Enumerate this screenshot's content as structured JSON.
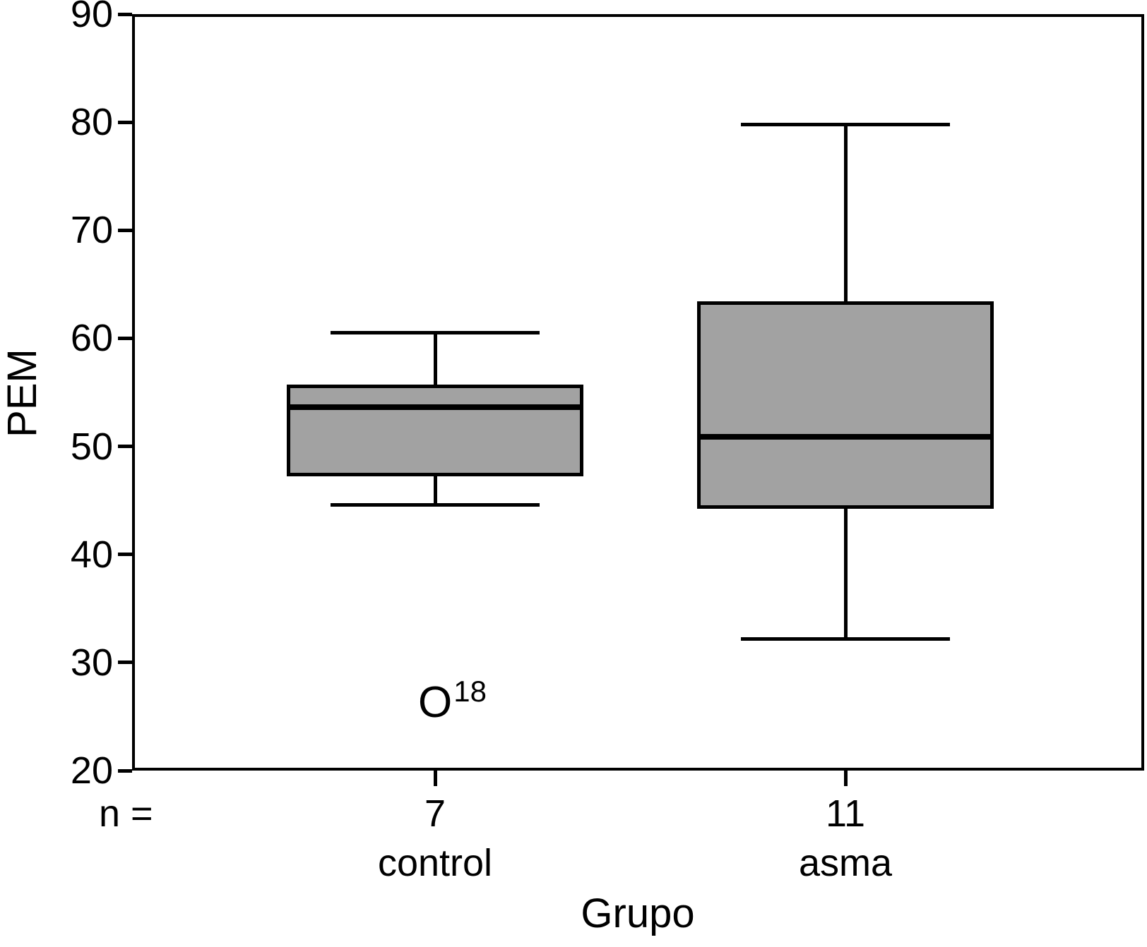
{
  "chart_data": {
    "type": "boxplot",
    "title": "",
    "ylabel": "PEM",
    "xlabel": "Grupo",
    "n_label": "n =",
    "ylim": [
      20,
      90
    ],
    "yticks": [
      90,
      80,
      70,
      60,
      50,
      40,
      30,
      20
    ],
    "grid": false,
    "box_fill": "#a2a2a2",
    "line_color": "#000000",
    "groups": [
      {
        "name": "control",
        "n": "7",
        "whisker_low": 44.6,
        "q1": 47.2,
        "median": 53.6,
        "q3": 55.7,
        "whisker_high": 60.5
      },
      {
        "name": "asma",
        "n": "11",
        "whisker_low": 32.2,
        "q1": 44.2,
        "median": 50.9,
        "q3": 63.4,
        "whisker_high": 79.8
      }
    ],
    "annotations": [
      {
        "text": "O",
        "superscript": "18",
        "group_index": 0,
        "value": 26.5
      }
    ]
  }
}
